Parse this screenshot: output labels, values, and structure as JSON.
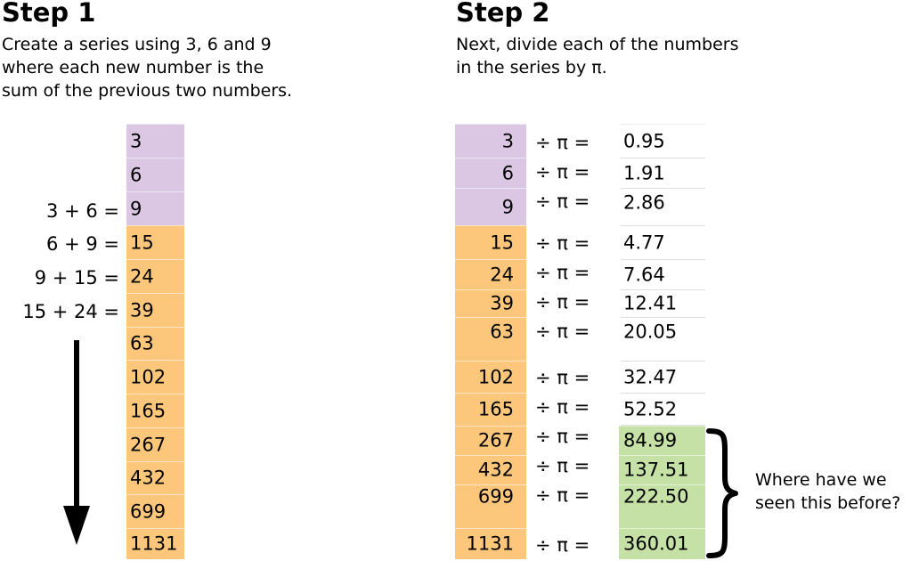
{
  "step1": {
    "title": "Step 1",
    "description": "Create a series using 3, 6 and 9\nwhere each new number is the\nsum of the previous two numbers.",
    "series": [
      "3",
      "6",
      "9",
      "15",
      "24",
      "39",
      "63",
      "102",
      "165",
      "267",
      "432",
      "699",
      "1131"
    ],
    "equations": [
      "3 + 6 =",
      "6 + 9 =",
      "9 + 15 =",
      "15 + 24 ="
    ]
  },
  "step2": {
    "title": "Step 2",
    "description": "Next, divide each of the numbers\nin the series by π.",
    "numbers": [
      "3",
      "6",
      "9",
      "15",
      "24",
      "39",
      "63",
      "102",
      "165",
      "267",
      "432",
      "699",
      "1131"
    ],
    "operator": "÷ π =",
    "results": [
      "0.95",
      "1.91",
      "2.86",
      "4.77",
      "7.64",
      "12.41",
      "20.05",
      "32.47",
      "52.52",
      "84.99",
      "137.51",
      "222.50",
      "360.01"
    ]
  },
  "question": "Where have we\nseen this before?",
  "colors": {
    "purple": "#dbc7e4",
    "orange": "#fdc77b",
    "green": "#c5e1a5"
  }
}
